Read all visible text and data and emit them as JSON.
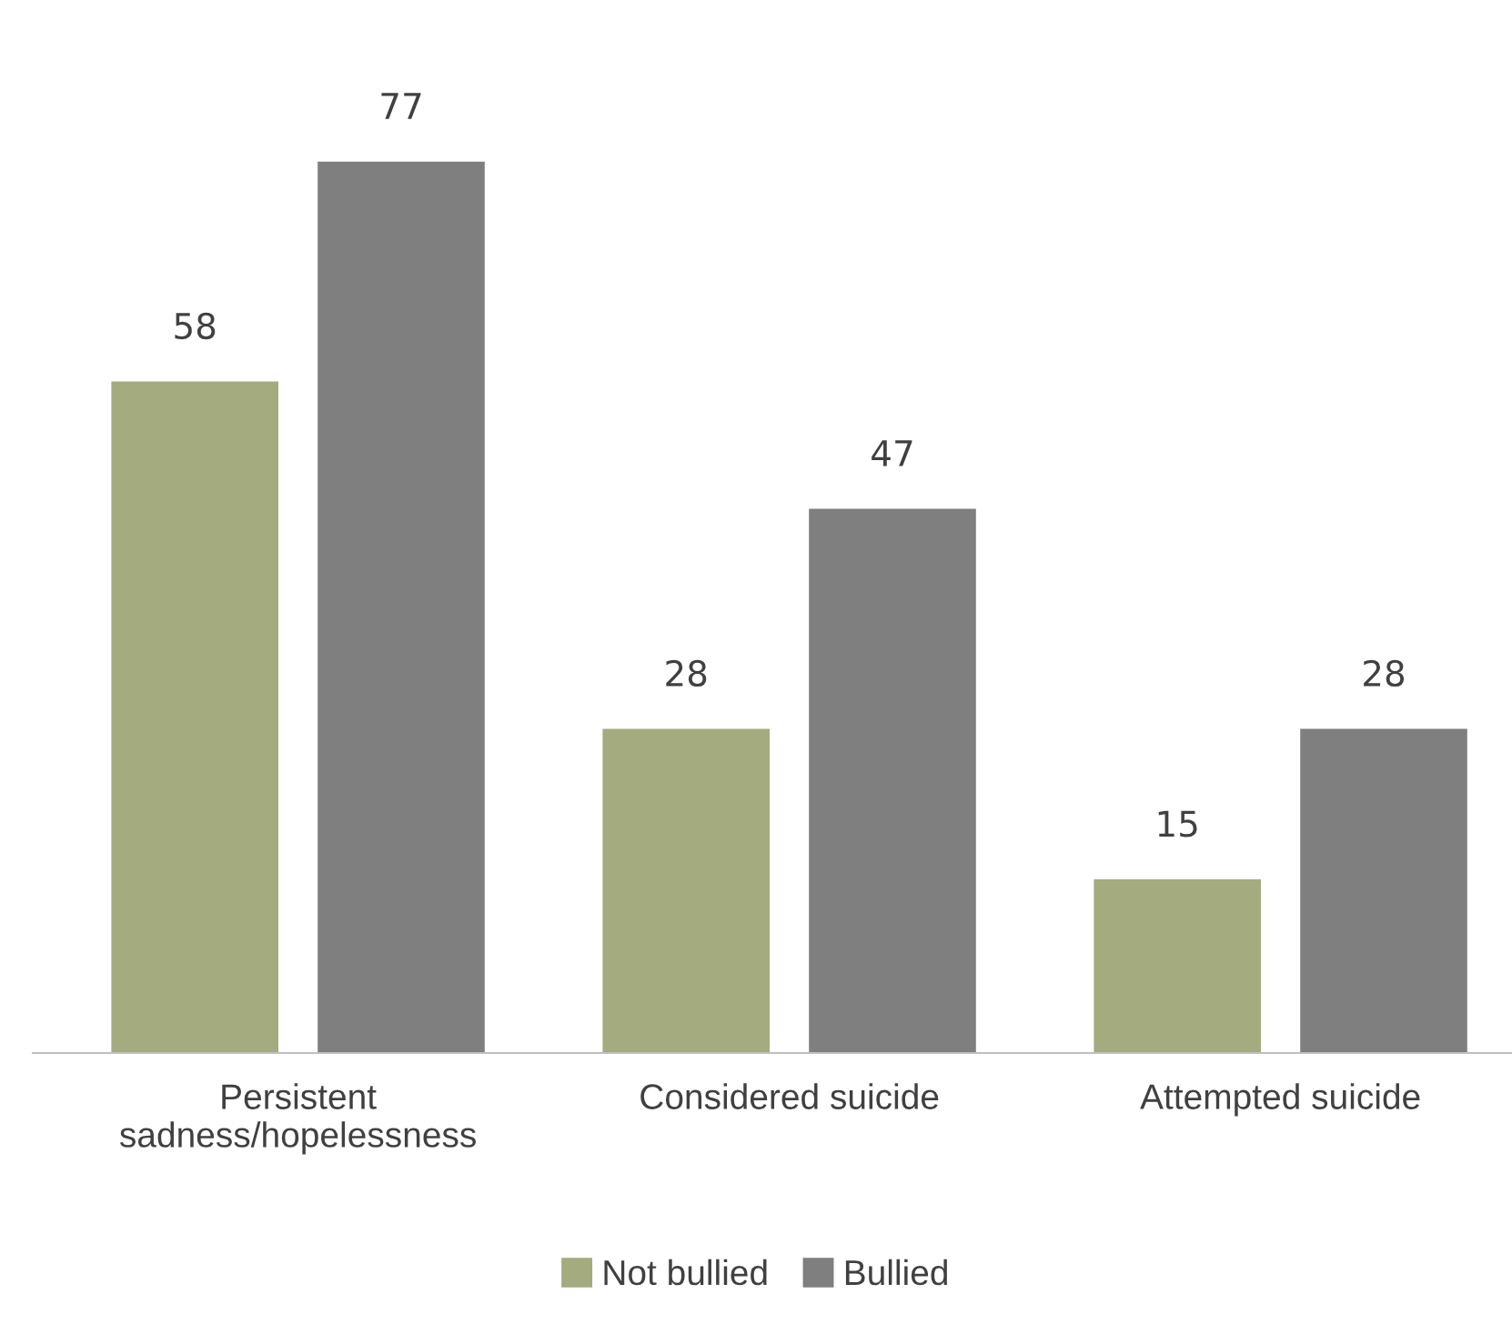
{
  "chart_data": {
    "type": "bar",
    "categories": [
      "Persistent sadness/hopelessness",
      "Considered suicide",
      "Attempted suicide"
    ],
    "series": [
      {
        "name": "Not bullied",
        "color": "#a3ab7f",
        "values": [
          58,
          28,
          15
        ]
      },
      {
        "name": "Bullied",
        "color": "#7f7f7f",
        "values": [
          77,
          47,
          28
        ]
      }
    ],
    "data_labels": true,
    "grid": false,
    "legend": "bottom",
    "tick_labels": "x"
  }
}
